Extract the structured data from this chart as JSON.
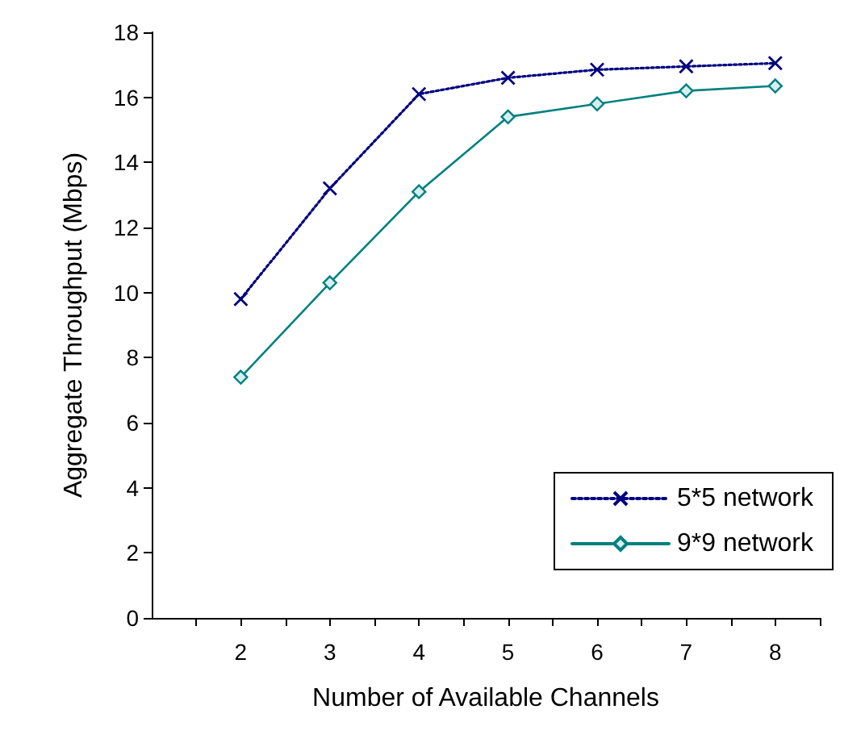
{
  "chart_data": {
    "type": "line",
    "xlabel": "Number of Available Channels",
    "ylabel": "Aggregate Throughput (Mbps)",
    "x": [
      2,
      3,
      4,
      5,
      6,
      7,
      8
    ],
    "series": [
      {
        "name": "5*5 network",
        "color": "#000080",
        "marker": "cross",
        "line_style": "dotted",
        "values": [
          9.8,
          13.2,
          16.1,
          16.6,
          16.85,
          16.95,
          17.05
        ]
      },
      {
        "name": "9*9 network",
        "color": "#008080",
        "marker": "diamond",
        "line_style": "solid",
        "values": [
          7.4,
          10.3,
          13.1,
          15.4,
          15.8,
          16.2,
          16.35
        ]
      }
    ],
    "xlim": [
      1,
      8.5
    ],
    "xticks": [
      {
        "value": 1.5,
        "label": null
      },
      2,
      {
        "value": 2.5,
        "label": null
      },
      3,
      {
        "value": 3.5,
        "label": null
      },
      4,
      {
        "value": 4.5,
        "label": null
      },
      5,
      {
        "value": 5.5,
        "label": null
      },
      6,
      {
        "value": 6.5,
        "label": null
      },
      7,
      {
        "value": 7.5,
        "label": null
      },
      8,
      {
        "value": 8.5,
        "label": null
      }
    ],
    "ylim": [
      0,
      18
    ],
    "yticks": [
      0,
      2,
      4,
      6,
      8,
      10,
      12,
      14,
      16,
      18
    ],
    "grid": false,
    "legend": "bottom right"
  }
}
